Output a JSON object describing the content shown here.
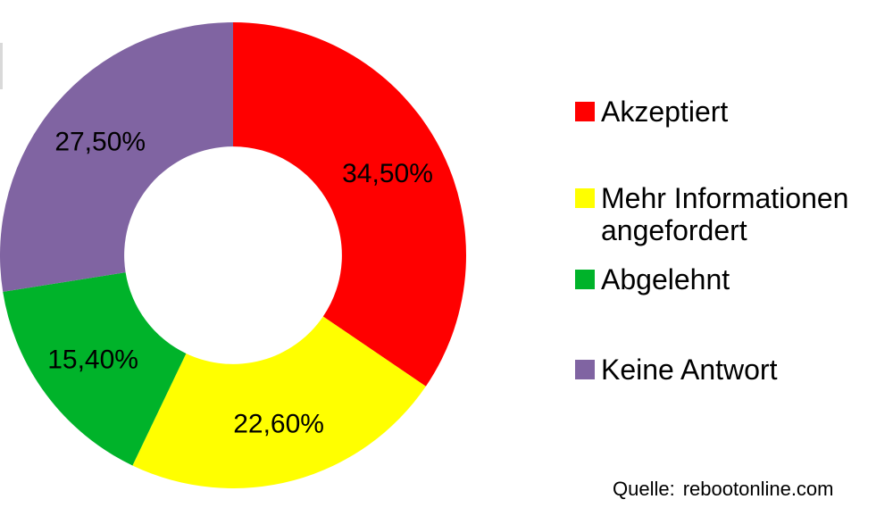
{
  "chart_data": {
    "type": "pie",
    "subtype": "donut",
    "title": "",
    "categories": [
      "Akzeptiert",
      "Mehr Informationen angefordert",
      "Abgelehnt",
      "Keine Antwort"
    ],
    "values": [
      34.5,
      22.6,
      15.4,
      27.5
    ],
    "labels": [
      "34,50%",
      "22,60%",
      "15,40%",
      "27,50%"
    ],
    "colors": [
      "#ff0000",
      "#ffff00",
      "#00b32a",
      "#8064a2"
    ],
    "label_color": "#000000",
    "background_color": "#ffffff",
    "legend_position": "right",
    "start_angle_deg": 0,
    "direction": "clockwise",
    "hole_ratio": 0.467,
    "label_radius_ratio": 0.75
  },
  "legend": {
    "items": [
      {
        "label": "Akzeptiert",
        "color": "#ff0000"
      },
      {
        "label": "Mehr Informationen angefordert",
        "color": "#ffff00"
      },
      {
        "label": "Abgelehnt",
        "color": "#00b32a"
      },
      {
        "label": "Keine Antwort",
        "color": "#8064a2"
      }
    ]
  },
  "source": {
    "label": "Quelle:",
    "value": "rebootonline.com"
  }
}
